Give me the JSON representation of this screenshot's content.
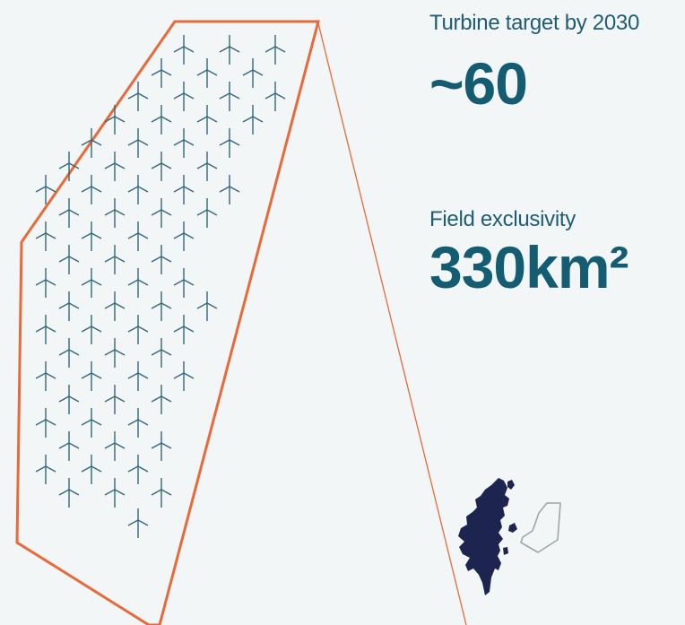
{
  "colors": {
    "background": "#f2f6f6",
    "outline": "#e8693a",
    "turbine": "#33677c",
    "heading": "#1f5d74",
    "value": "#135c72",
    "island": "#1e2450"
  },
  "stats": {
    "turbines": {
      "label": "Turbine target by 2030",
      "value": "~60"
    },
    "exclusivity": {
      "label": "Field exclusivity",
      "value": "330km²"
    }
  },
  "icons": {
    "turbine": "wind-turbine-icon",
    "island": "shetland-island-icon",
    "field": "field-outline-icon"
  }
}
